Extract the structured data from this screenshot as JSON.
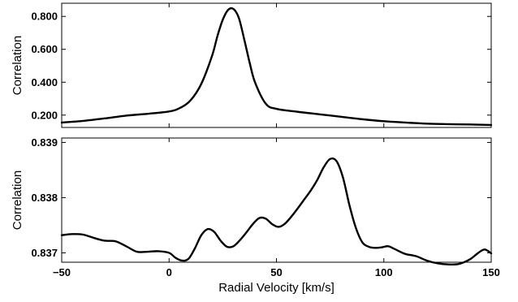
{
  "chart_data": [
    {
      "type": "line",
      "ylabel": "Correlation",
      "xlim": [
        -50,
        150
      ],
      "ylim": [
        0.125,
        0.88
      ],
      "yticks": [
        0.2,
        0.4,
        0.6,
        0.8
      ],
      "ytick_labels": [
        "0.200",
        "0.400",
        "0.600",
        "0.800"
      ],
      "x": [
        -50,
        -40,
        -30,
        -20,
        -10,
        0,
        5,
        10,
        15,
        20,
        22.5,
        25,
        27.5,
        30,
        32.5,
        35,
        37.5,
        40,
        45,
        50,
        60,
        70,
        80,
        90,
        100,
        110,
        120,
        130,
        140,
        150
      ],
      "y": [
        0.155,
        0.165,
        0.18,
        0.197,
        0.208,
        0.222,
        0.243,
        0.29,
        0.39,
        0.56,
        0.68,
        0.78,
        0.84,
        0.845,
        0.79,
        0.66,
        0.52,
        0.4,
        0.27,
        0.238,
        0.22,
        0.205,
        0.19,
        0.175,
        0.163,
        0.155,
        0.148,
        0.145,
        0.143,
        0.14
      ]
    },
    {
      "type": "line",
      "ylabel": "Correlation",
      "xlabel": "Radial Velocity [km/s]",
      "xlim": [
        -50,
        150
      ],
      "ylim": [
        0.83683,
        0.83908
      ],
      "xticks": [
        -50,
        0,
        50,
        100,
        150
      ],
      "xtick_labels": [
        "−50",
        "0",
        "50",
        "100",
        "150"
      ],
      "yticks": [
        0.837,
        0.838,
        0.839
      ],
      "ytick_labels": [
        "0.837",
        "0.838",
        "0.839"
      ],
      "x": [
        -50,
        -45,
        -40,
        -35,
        -30,
        -25,
        -20,
        -15,
        -10,
        -5,
        0,
        3,
        6,
        9,
        12,
        15,
        18,
        21,
        24,
        27,
        30,
        33,
        36,
        39,
        42,
        45,
        48,
        51,
        54,
        57,
        60,
        63,
        66,
        69,
        72,
        75,
        78,
        81,
        84,
        87,
        90,
        93,
        96,
        99,
        102,
        105,
        110,
        115,
        120,
        125,
        130,
        135,
        140,
        144,
        147,
        150
      ],
      "y": [
        0.83732,
        0.83734,
        0.83733,
        0.83727,
        0.83722,
        0.83721,
        0.83712,
        0.83702,
        0.83702,
        0.83703,
        0.837,
        0.83691,
        0.83686,
        0.83689,
        0.83708,
        0.83732,
        0.83743,
        0.83738,
        0.83722,
        0.83711,
        0.83712,
        0.83723,
        0.83737,
        0.83752,
        0.83763,
        0.83762,
        0.83752,
        0.83747,
        0.83753,
        0.83766,
        0.83781,
        0.83797,
        0.83813,
        0.83832,
        0.83855,
        0.8387,
        0.83866,
        0.83836,
        0.83786,
        0.83745,
        0.83719,
        0.83711,
        0.83709,
        0.8371,
        0.83712,
        0.83707,
        0.83698,
        0.83694,
        0.83686,
        0.83681,
        0.83679,
        0.8368,
        0.83688,
        0.837,
        0.83706,
        0.83699
      ]
    }
  ]
}
